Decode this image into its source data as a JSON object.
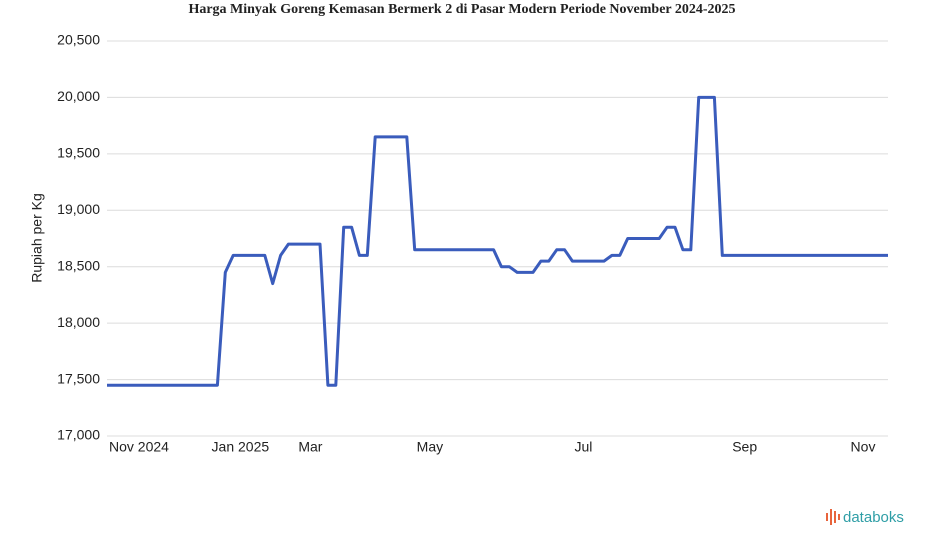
{
  "chart_data": {
    "type": "line",
    "title": "Harga Minyak Goreng Kemasan Bermerk 2 di Pasar Modern Periode November 2024-2025",
    "y_label": "Rupiah per Kg",
    "source": "databoks",
    "color": "#3a5cbc",
    "grid": true,
    "categories": [
      "Nov 2024",
      null,
      null,
      null,
      null,
      null,
      null,
      null,
      null,
      null,
      null,
      null,
      null,
      "Jan 2025",
      null,
      null,
      null,
      null,
      null,
      null,
      null,
      null,
      null,
      null,
      "Mar",
      null,
      null,
      null,
      null,
      null,
      null,
      null,
      null,
      null,
      null,
      null,
      null,
      null,
      null,
      "May",
      null,
      null,
      null,
      null,
      null,
      null,
      null,
      null,
      null,
      null,
      null,
      null,
      null,
      null,
      null,
      null,
      null,
      null,
      null,
      "Jul",
      null,
      null,
      null,
      null,
      null,
      null,
      null,
      null,
      null,
      null,
      null,
      null,
      null,
      null,
      null,
      null,
      null,
      null,
      null,
      "Sep",
      null,
      null,
      null,
      null,
      null,
      null,
      null,
      null,
      null,
      null,
      null,
      null,
      null,
      null,
      "Nov",
      null,
      null,
      null,
      null,
      null
    ],
    "values": [
      17450,
      17450,
      17450,
      17450,
      17450,
      17450,
      17450,
      17450,
      17450,
      17450,
      17450,
      17450,
      17450,
      17450,
      17450,
      18450,
      18600,
      18600,
      18600,
      18600,
      18600,
      18350,
      18600,
      18700,
      18700,
      18700,
      18700,
      18700,
      17450,
      17450,
      18850,
      18850,
      18600,
      18600,
      19650,
      19650,
      19650,
      19650,
      19650,
      18650,
      18650,
      18650,
      18650,
      18650,
      18650,
      18650,
      18650,
      18650,
      18650,
      18650,
      18500,
      18500,
      18450,
      18450,
      18450,
      18550,
      18550,
      18650,
      18650,
      18550,
      18550,
      18550,
      18550,
      18550,
      18600,
      18600,
      18750,
      18750,
      18750,
      18750,
      18750,
      18850,
      18850,
      18650,
      18650,
      20000,
      20000,
      20000,
      18600,
      18600,
      18600,
      18600,
      18600,
      18600,
      18600,
      18600,
      18600,
      18600,
      18600,
      18600,
      18600,
      18600,
      18600,
      18600,
      18600,
      18600,
      18600,
      18600,
      18600,
      18600
    ],
    "ylim": [
      17000,
      20500
    ],
    "yticks": [
      {
        "value": 17000,
        "label": "17,000"
      },
      {
        "value": 17500,
        "label": "17,500"
      },
      {
        "value": 18000,
        "label": "18,000"
      },
      {
        "value": 18500,
        "label": "18,500"
      },
      {
        "value": 19000,
        "label": "19,000"
      },
      {
        "value": 19500,
        "label": "19,500"
      },
      {
        "value": 20000,
        "label": "20,000"
      },
      {
        "value": 20500,
        "label": "20,500"
      }
    ]
  }
}
